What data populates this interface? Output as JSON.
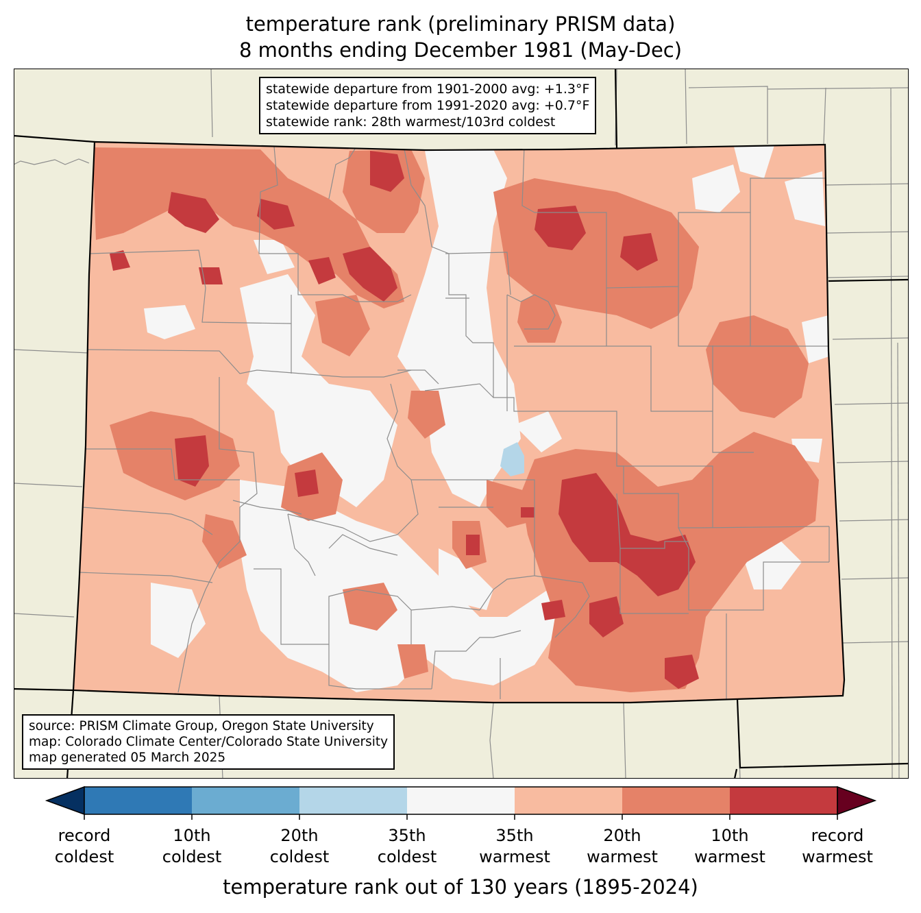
{
  "title": {
    "line1": "temperature rank (preliminary PRISM data)",
    "line2": "8 months ending December 1981 (May-Dec)"
  },
  "stats": {
    "line1": "statewide departure from 1901-2000 avg: +1.3°F",
    "line2": "statewide departure from 1991-2020 avg: +0.7°F",
    "line3": "statewide rank: 28th warmest/103rd coldest"
  },
  "credits": {
    "line1": "source: PRISM Climate Group, Oregon State University",
    "line2": "map: Colorado Climate Center/Colorado State University",
    "line3": "map generated 05 March 2025"
  },
  "colors": {
    "background_land": "#efeedc",
    "county_line": "#8c8c8c",
    "state_line": "#000000",
    "below_record_coldest": "#053061",
    "record_to_10th_coldest": "#2f79b5",
    "10th_to_20th_coldest": "#6bacd1",
    "20th_to_35th_coldest": "#b4d6e8",
    "near_normal": "#f6f6f6",
    "35th_to_20th_warmest": "#f8bba0",
    "20th_to_10th_warmest": "#e58268",
    "10th_warmest_to_record": "#c43a3e",
    "above_record_warmest": "#67001f"
  },
  "colorbar": {
    "ticks": [
      {
        "label": "record\ncoldest"
      },
      {
        "label": "10th\ncoldest"
      },
      {
        "label": "20th\ncoldest"
      },
      {
        "label": "35th\ncoldest"
      },
      {
        "label": "35th\nwarmest"
      },
      {
        "label": "20th\nwarmest"
      },
      {
        "label": "10th\nwarmest"
      },
      {
        "label": "record\nwarmest"
      }
    ],
    "label": "temperature rank out of 130 years (1895-2024)"
  }
}
